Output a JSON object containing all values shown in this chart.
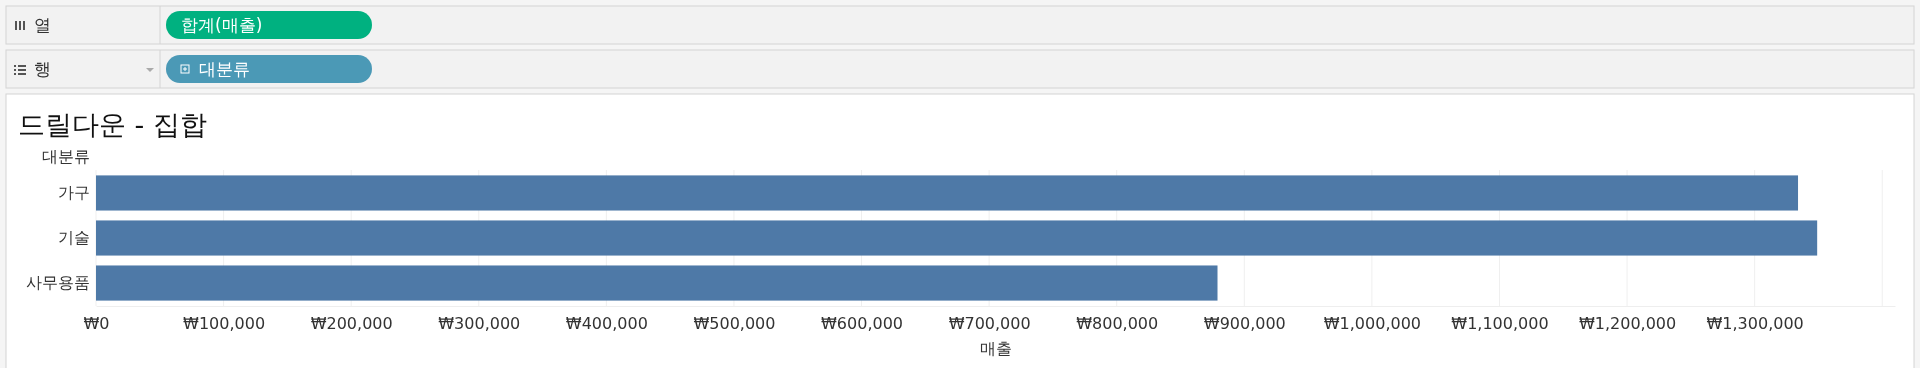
{
  "chart_data": {
    "type": "bar",
    "orientation": "horizontal",
    "title": "드릴다운 - 집합",
    "xlabel": "매출",
    "ylabel": "대분류",
    "annotations": [
      "열",
      "합계(매출)",
      "행",
      "대분류"
    ],
    "categories": [
      "가구",
      "기술",
      "사무용품"
    ],
    "values": [
      1334000,
      1349000,
      879000
    ],
    "color": "#4e79a7",
    "xlim": [
      0,
      1410000
    ],
    "xticks": [
      {
        "value": 0,
        "label": "₩0"
      },
      {
        "value": 100000,
        "label": "₩100,000"
      },
      {
        "value": 200000,
        "label": "₩200,000"
      },
      {
        "value": 300000,
        "label": "₩300,000"
      },
      {
        "value": 400000,
        "label": "₩400,000"
      },
      {
        "value": 500000,
        "label": "₩500,000"
      },
      {
        "value": 600000,
        "label": "₩600,000"
      },
      {
        "value": 700000,
        "label": "₩700,000"
      },
      {
        "value": 800000,
        "label": "₩800,000"
      },
      {
        "value": 900000,
        "label": "₩900,000"
      },
      {
        "value": 1000000,
        "label": "₩1,000,000"
      },
      {
        "value": 1100000,
        "label": "₩1,100,000"
      },
      {
        "value": 1200000,
        "label": "₩1,200,000"
      },
      {
        "value": 1300000,
        "label": "₩1,300,000"
      },
      {
        "value": 1400000,
        "label": null
      }
    ],
    "grid": "x"
  }
}
